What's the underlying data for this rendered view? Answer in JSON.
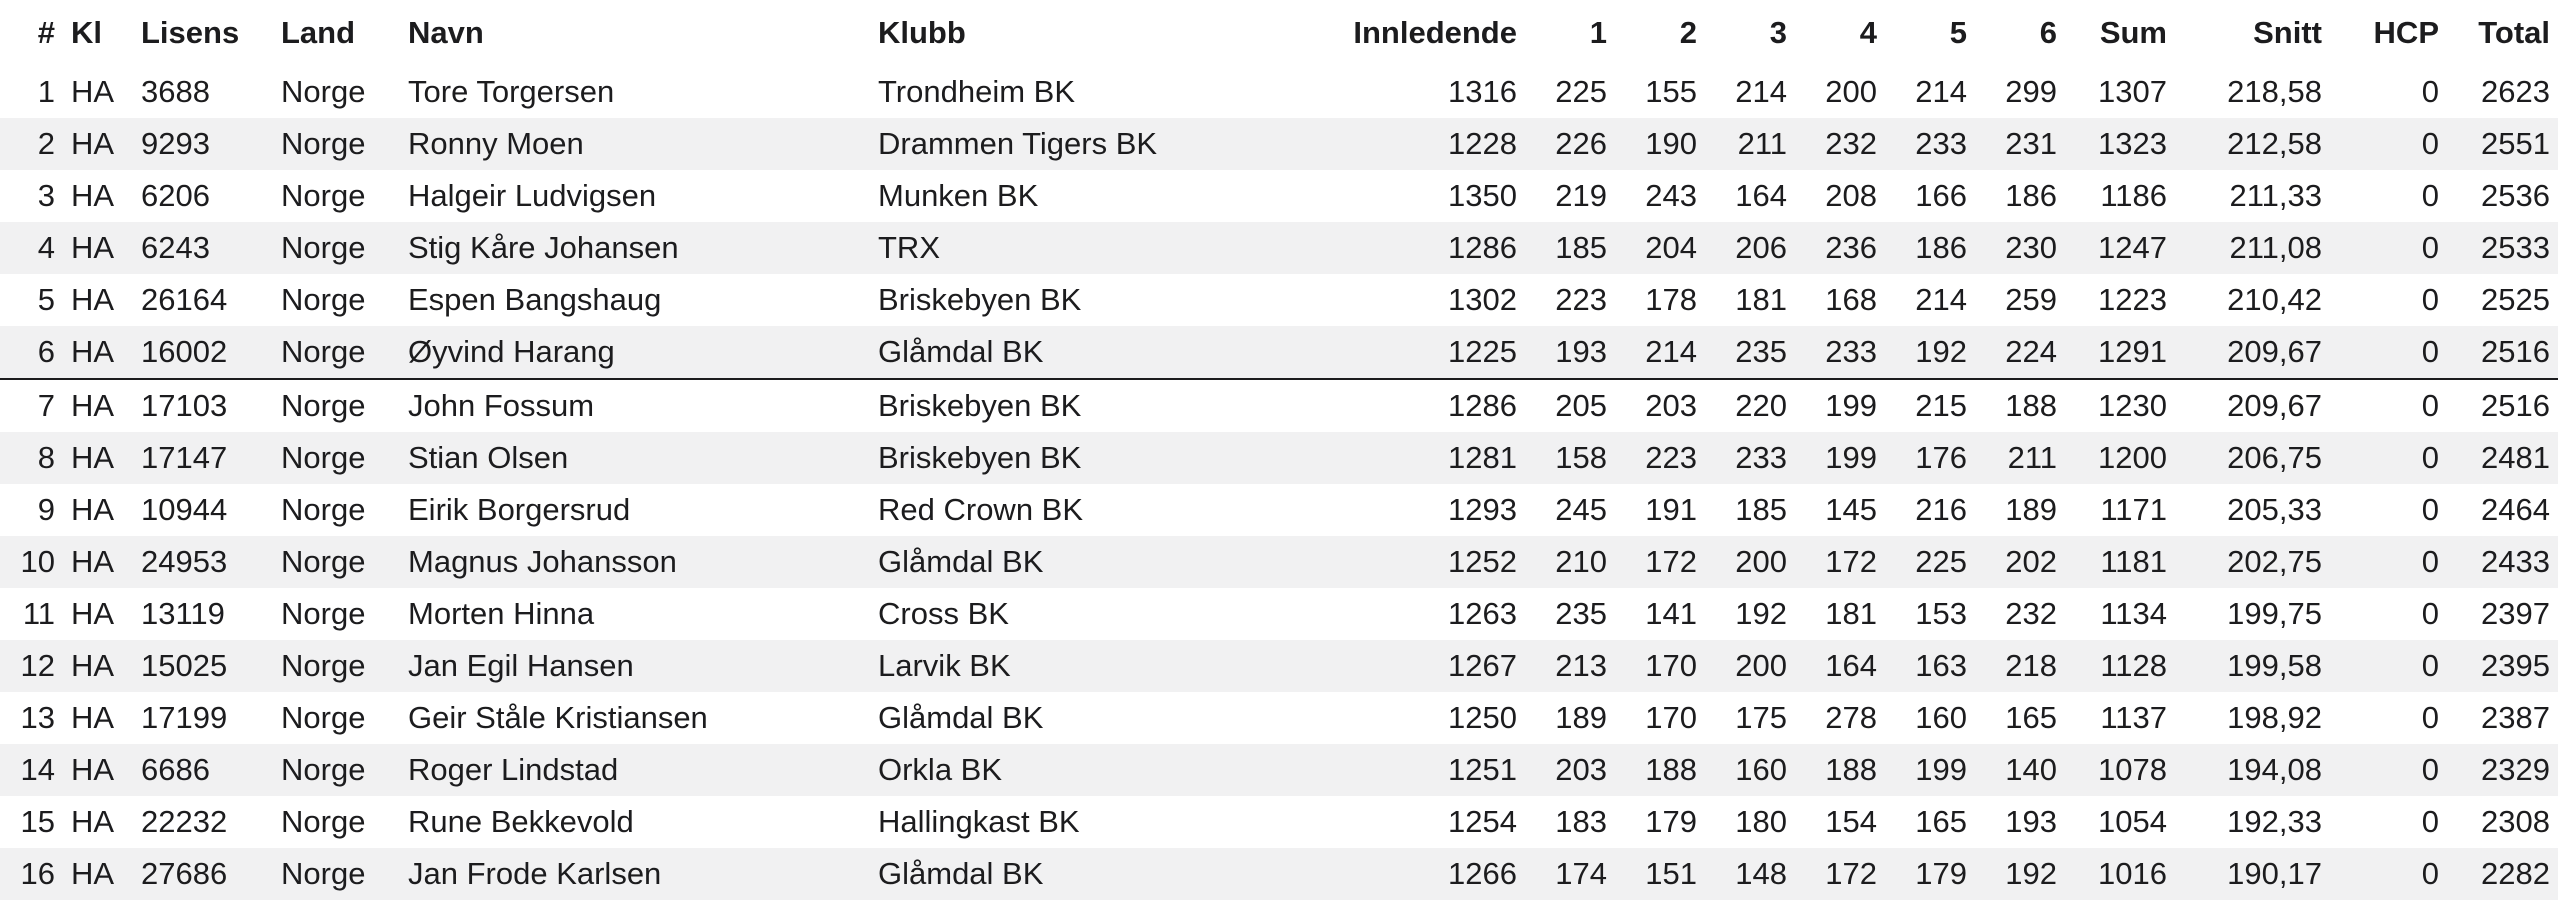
{
  "columns": [
    "#",
    "Kl",
    "Lisens",
    "Land",
    "Navn",
    "Klubb",
    "Innledende",
    "1",
    "2",
    "3",
    "4",
    "5",
    "6",
    "Sum",
    "Snitt",
    "HCP",
    "Total"
  ],
  "rows": [
    [
      "1",
      "HA",
      "3688",
      "Norge",
      "Tore Torgersen",
      "Trondheim BK",
      "1316",
      "225",
      "155",
      "214",
      "200",
      "214",
      "299",
      "1307",
      "218,58",
      "0",
      "2623"
    ],
    [
      "2",
      "HA",
      "9293",
      "Norge",
      "Ronny Moen",
      "Drammen Tigers BK",
      "1228",
      "226",
      "190",
      "211",
      "232",
      "233",
      "231",
      "1323",
      "212,58",
      "0",
      "2551"
    ],
    [
      "3",
      "HA",
      "6206",
      "Norge",
      "Halgeir Ludvigsen",
      "Munken BK",
      "1350",
      "219",
      "243",
      "164",
      "208",
      "166",
      "186",
      "1186",
      "211,33",
      "0",
      "2536"
    ],
    [
      "4",
      "HA",
      "6243",
      "Norge",
      "Stig Kåre Johansen",
      "TRX",
      "1286",
      "185",
      "204",
      "206",
      "236",
      "186",
      "230",
      "1247",
      "211,08",
      "0",
      "2533"
    ],
    [
      "5",
      "HA",
      "26164",
      "Norge",
      "Espen Bangshaug",
      "Briskebyen BK",
      "1302",
      "223",
      "178",
      "181",
      "168",
      "214",
      "259",
      "1223",
      "210,42",
      "0",
      "2525"
    ],
    [
      "6",
      "HA",
      "16002",
      "Norge",
      "Øyvind Harang",
      "Glåmdal BK",
      "1225",
      "193",
      "214",
      "235",
      "233",
      "192",
      "224",
      "1291",
      "209,67",
      "0",
      "2516"
    ],
    [
      "7",
      "HA",
      "17103",
      "Norge",
      "John Fossum",
      "Briskebyen BK",
      "1286",
      "205",
      "203",
      "220",
      "199",
      "215",
      "188",
      "1230",
      "209,67",
      "0",
      "2516"
    ],
    [
      "8",
      "HA",
      "17147",
      "Norge",
      "Stian Olsen",
      "Briskebyen BK",
      "1281",
      "158",
      "223",
      "233",
      "199",
      "176",
      "211",
      "1200",
      "206,75",
      "0",
      "2481"
    ],
    [
      "9",
      "HA",
      "10944",
      "Norge",
      "Eirik Borgersrud",
      "Red Crown BK",
      "1293",
      "245",
      "191",
      "185",
      "145",
      "216",
      "189",
      "1171",
      "205,33",
      "0",
      "2464"
    ],
    [
      "10",
      "HA",
      "24953",
      "Norge",
      "Magnus Johansson",
      "Glåmdal BK",
      "1252",
      "210",
      "172",
      "200",
      "172",
      "225",
      "202",
      "1181",
      "202,75",
      "0",
      "2433"
    ],
    [
      "11",
      "HA",
      "13119",
      "Norge",
      "Morten Hinna",
      "Cross BK",
      "1263",
      "235",
      "141",
      "192",
      "181",
      "153",
      "232",
      "1134",
      "199,75",
      "0",
      "2397"
    ],
    [
      "12",
      "HA",
      "15025",
      "Norge",
      "Jan Egil Hansen",
      "Larvik BK",
      "1267",
      "213",
      "170",
      "200",
      "164",
      "163",
      "218",
      "1128",
      "199,58",
      "0",
      "2395"
    ],
    [
      "13",
      "HA",
      "17199",
      "Norge",
      "Geir Ståle Kristiansen",
      "Glåmdal BK",
      "1250",
      "189",
      "170",
      "175",
      "278",
      "160",
      "165",
      "1137",
      "198,92",
      "0",
      "2387"
    ],
    [
      "14",
      "HA",
      "6686",
      "Norge",
      "Roger Lindstad",
      "Orkla BK",
      "1251",
      "203",
      "188",
      "160",
      "188",
      "199",
      "140",
      "1078",
      "194,08",
      "0",
      "2329"
    ],
    [
      "15",
      "HA",
      "22232",
      "Norge",
      "Rune Bekkevold",
      "Hallingkast BK",
      "1254",
      "183",
      "179",
      "180",
      "154",
      "165",
      "193",
      "1054",
      "192,33",
      "0",
      "2308"
    ],
    [
      "16",
      "HA",
      "27686",
      "Norge",
      "Jan Frode Karlsen",
      "Glåmdal BK",
      "1266",
      "174",
      "151",
      "148",
      "172",
      "179",
      "192",
      "1016",
      "190,17",
      "0",
      "2282"
    ]
  ]
}
